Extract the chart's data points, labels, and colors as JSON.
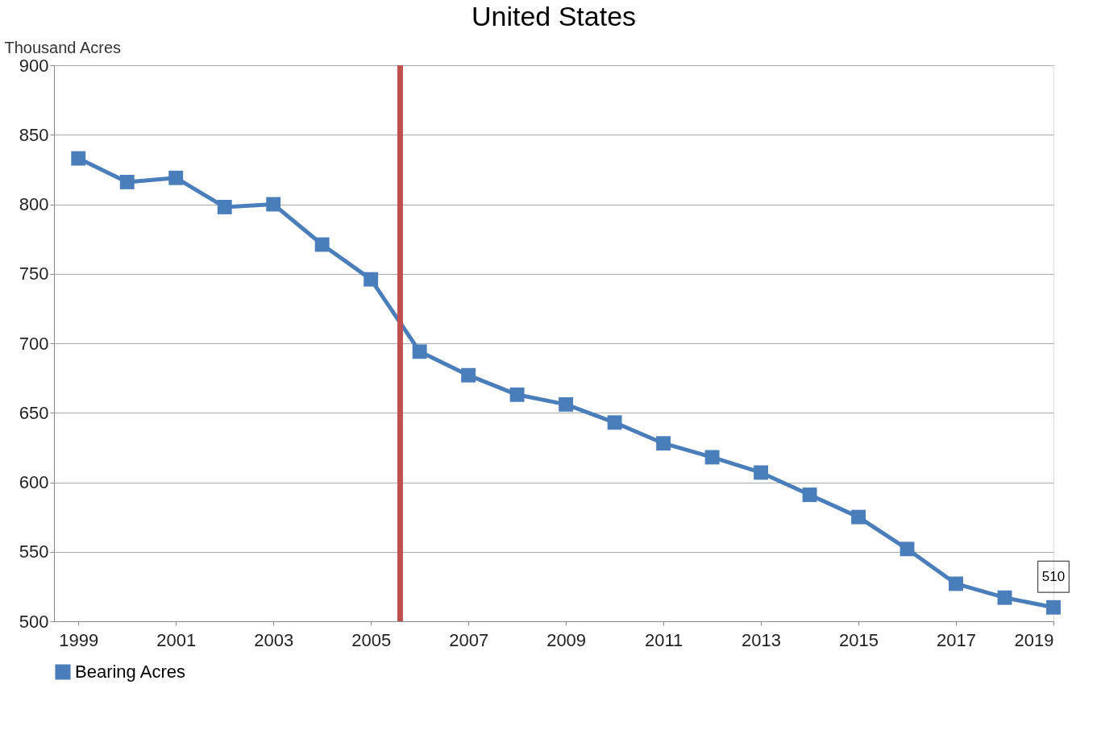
{
  "chart_data": {
    "type": "line",
    "title": "United States",
    "ylabel": "Thousand Acres",
    "x": [
      1999,
      2000,
      2001,
      2002,
      2003,
      2004,
      2005,
      2006,
      2007,
      2008,
      2009,
      2010,
      2011,
      2012,
      2013,
      2014,
      2015,
      2016,
      2017,
      2018,
      2019
    ],
    "series": [
      {
        "name": "Bearing Acres",
        "color": "#4a7ebb",
        "values": [
          833,
          816,
          819,
          798,
          800,
          771,
          746,
          694,
          677,
          663,
          656,
          643,
          628,
          618,
          607,
          591,
          575,
          552,
          527,
          517,
          510
        ]
      }
    ],
    "xlim": [
      1998.5,
      2019
    ],
    "xticks": [
      1999,
      2001,
      2003,
      2005,
      2007,
      2009,
      2011,
      2013,
      2015,
      2017,
      2019
    ],
    "ylim": [
      500,
      900
    ],
    "yticks": [
      500,
      550,
      600,
      650,
      700,
      750,
      800,
      850,
      900
    ],
    "ref_lines": [
      {
        "axis": "x",
        "value": 2005.6,
        "color": "#c0504d"
      }
    ],
    "annotations": [
      {
        "text": "510",
        "x": 2019,
        "y": 510
      }
    ],
    "grid": "y",
    "legend": "bottom",
    "marker": "square",
    "line_style": "solid"
  }
}
